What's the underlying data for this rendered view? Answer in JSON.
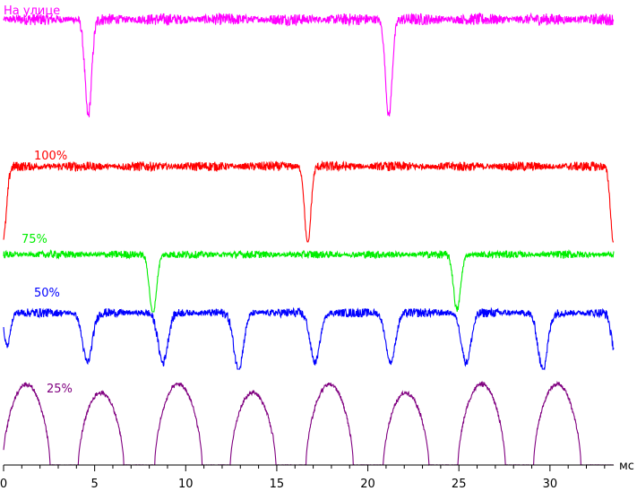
{
  "chart_data": {
    "type": "line",
    "title": "",
    "xlabel": "",
    "ylabel": "",
    "x_unit": "мс",
    "xlim": [
      0,
      33.5
    ],
    "x_ticks": [
      0,
      5,
      10,
      15,
      20,
      25,
      30
    ],
    "x_tick_labels": [
      "0",
      "5",
      "10",
      "15",
      "20",
      "25",
      "30"
    ],
    "grid": false,
    "legend": "inline",
    "series": [
      {
        "name": "На улице",
        "color": "#ff00ff",
        "baseline": 0.92,
        "noise": 0.08,
        "dips": [
          {
            "center": 4.65,
            "width": 0.38,
            "depth": 0.9
          },
          {
            "center": 21.15,
            "width": 0.38,
            "depth": 0.9
          }
        ]
      },
      {
        "name": "100%",
        "color": "#ff0000",
        "baseline": 0.86,
        "noise": 0.08,
        "dips": [
          {
            "center": 0.0,
            "width": 0.35,
            "depth": 0.8
          },
          {
            "center": 16.7,
            "width": 0.35,
            "depth": 0.9
          },
          {
            "center": 33.5,
            "width": 0.35,
            "depth": 0.9
          }
        ]
      },
      {
        "name": "75%",
        "color": "#00ee00",
        "baseline": 0.82,
        "noise": 0.08,
        "dips": [
          {
            "center": 8.2,
            "width": 0.4,
            "depth": 0.85
          },
          {
            "center": 24.9,
            "width": 0.4,
            "depth": 0.8
          }
        ]
      },
      {
        "name": "50%",
        "color": "#0000ff",
        "baseline": 0.85,
        "noise": 0.1,
        "dips": [
          {
            "center": 0.2,
            "width": 0.35,
            "depth": 0.5
          },
          {
            "center": 4.6,
            "width": 0.55,
            "depth": 0.75
          },
          {
            "center": 8.75,
            "width": 0.55,
            "depth": 0.75
          },
          {
            "center": 12.9,
            "width": 0.55,
            "depth": 0.85
          },
          {
            "center": 17.1,
            "width": 0.55,
            "depth": 0.75
          },
          {
            "center": 21.25,
            "width": 0.55,
            "depth": 0.75
          },
          {
            "center": 25.4,
            "width": 0.55,
            "depth": 0.75
          },
          {
            "center": 29.6,
            "width": 0.55,
            "depth": 0.85
          },
          {
            "center": 33.5,
            "width": 0.35,
            "depth": 0.5
          }
        ]
      },
      {
        "name": "25%",
        "color": "#800080",
        "baseline": 0.0,
        "noise": 0.05,
        "pulses": [
          {
            "center": 1.25,
            "width": 1.3,
            "height": 0.95
          },
          {
            "center": 5.35,
            "width": 1.25,
            "height": 0.85
          },
          {
            "center": 9.6,
            "width": 1.3,
            "height": 0.95
          },
          {
            "center": 13.7,
            "width": 1.25,
            "height": 0.85
          },
          {
            "center": 17.9,
            "width": 1.3,
            "height": 0.95
          },
          {
            "center": 22.1,
            "width": 1.25,
            "height": 0.85
          },
          {
            "center": 26.25,
            "width": 1.3,
            "height": 0.95
          },
          {
            "center": 30.4,
            "width": 1.3,
            "height": 0.95
          }
        ]
      }
    ]
  }
}
